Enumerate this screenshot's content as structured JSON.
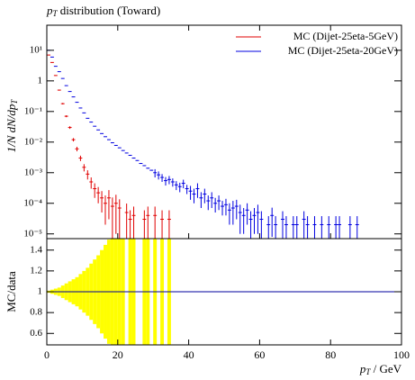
{
  "chart_data": {
    "type": "histogram",
    "title": {
      "symbol": "p",
      "subscript": "T",
      "text": " distribution (Toward)"
    },
    "ylabel": {
      "text": "1/N dN/dp",
      "subscript": "T"
    },
    "xlabel": {
      "symbol": "p",
      "subscript": "T",
      "text": " / GeV"
    },
    "log_y": true,
    "xlim": [
      0,
      100
    ],
    "xticks": [
      0,
      20,
      40,
      60,
      80,
      100
    ],
    "ylim": [
      7e-06,
      66
    ],
    "yticks": [
      {
        "value": 10,
        "label": "10¹"
      },
      1,
      {
        "value": 0.1,
        "label": "10⁻¹"
      },
      {
        "value": 0.01,
        "label": "10⁻²"
      },
      {
        "value": 0.001,
        "label": "10⁻³"
      },
      {
        "value": 0.0001,
        "label": "10⁻⁴"
      },
      {
        "value": 1e-05,
        "label": "10⁻⁵"
      }
    ],
    "legend": "top-right",
    "series": [
      {
        "name": "MC (Dijet-25eta-5GeV)",
        "color": "#e00000",
        "bins": [
          0,
          1,
          2,
          3,
          4,
          5,
          6,
          7,
          8,
          9,
          10,
          11,
          12,
          13,
          14,
          15,
          16,
          17,
          18,
          19,
          20,
          21,
          22,
          23,
          24,
          25,
          26,
          27,
          28,
          29,
          30,
          31,
          32,
          33,
          34,
          35,
          36
        ],
        "values": [
          7,
          4,
          1.5,
          0.5,
          0.18,
          0.07,
          0.03,
          0.012,
          0.006,
          0.003,
          0.0015,
          0.0009,
          0.0005,
          0.0003,
          0.00022,
          0.00015,
          0.0001,
          0.00015,
          8e-05,
          0.0001,
          7e-05,
          null,
          5e-05,
          3e-05,
          4e-05,
          null,
          null,
          3e-05,
          4e-05,
          null,
          4e-05,
          null,
          3e-05,
          null,
          3e-05,
          null
        ],
        "errors": [
          0.1,
          0.08,
          0.04,
          0.02,
          0.01,
          0.005,
          0.003,
          0.0015,
          0.001,
          0.0006,
          0.0004,
          0.0003,
          0.0002,
          0.00015,
          0.00012,
          0.0001,
          8e-05,
          0.00012,
          7.5e-05,
          9e-05,
          6.5e-05,
          null,
          4.8e-05,
          2.9e-05,
          3.8e-05,
          null,
          null,
          2.9e-05,
          3.8e-05,
          null,
          3.8e-05,
          null,
          2.9e-05,
          null,
          2.9e-05,
          null
        ]
      },
      {
        "name": "MC (Dijet-25eta-20GeV)",
        "color": "#0000e0",
        "bins": [
          0,
          1,
          2,
          3,
          4,
          5,
          6,
          7,
          8,
          9,
          10,
          11,
          12,
          13,
          14,
          15,
          16,
          17,
          18,
          19,
          20,
          21,
          22,
          23,
          24,
          25,
          26,
          27,
          28,
          29,
          30,
          31,
          32,
          33,
          34,
          35,
          36,
          37,
          38,
          39,
          40,
          41,
          42,
          43,
          44,
          45,
          46,
          47,
          48,
          49,
          50,
          51,
          52,
          53,
          54,
          55,
          56,
          57,
          58,
          59,
          60,
          61,
          62,
          63,
          64,
          65,
          66,
          67,
          68,
          69,
          70,
          71,
          72,
          73,
          74,
          75,
          76,
          77,
          78,
          79,
          80,
          81,
          82,
          83,
          84,
          85,
          86,
          87,
          88,
          89,
          90
        ],
        "values": [
          10,
          6,
          3,
          2,
          1.2,
          0.7,
          0.45,
          0.3,
          0.2,
          0.13,
          0.09,
          0.06,
          0.045,
          0.033,
          0.025,
          0.019,
          0.015,
          0.012,
          0.0095,
          0.0078,
          0.0065,
          0.0053,
          0.0044,
          0.0037,
          0.003,
          0.0025,
          0.002,
          0.0017,
          0.0014,
          0.0012,
          0.001,
          0.00085,
          0.0007,
          0.00055,
          0.0006,
          0.0005,
          0.0004,
          0.00035,
          0.00045,
          0.0003,
          0.00025,
          0.0002,
          0.0003,
          0.00015,
          0.0002,
          0.00012,
          0.00015,
          0.0001,
          0.00012,
          8e-05,
          9e-05,
          6e-05,
          7e-05,
          8e-05,
          5e-05,
          4e-05,
          6e-05,
          3e-05,
          4e-05,
          5e-05,
          3e-05,
          null,
          2e-05,
          4e-05,
          2e-05,
          null,
          3e-05,
          2e-05,
          null,
          2e-05,
          2e-05,
          null,
          3e-05,
          2e-05,
          null,
          2e-05,
          null,
          2e-05,
          null,
          2e-05,
          null,
          2e-05,
          2e-05,
          null,
          null,
          2e-05,
          null,
          2e-05,
          null,
          null
        ],
        "errors": [
          0.05,
          0.03,
          0.015,
          0.01,
          0.006,
          0.004,
          0.003,
          0.002,
          0.0015,
          0.001,
          0.0008,
          0.0006,
          0.0005,
          0.0004,
          0.0003,
          0.00025,
          0.0002,
          0.00018,
          0.00015,
          0.00013,
          0.00012,
          0.0001,
          9e-05,
          8e-05,
          7e-05,
          6e-05,
          5e-05,
          5e-05,
          4e-05,
          4e-05,
          0.0003,
          0.00025,
          0.0002,
          0.00017,
          0.00018,
          0.00015,
          0.00013,
          0.00012,
          0.00014,
          0.0001,
          0.00012,
          0.0001,
          0.00015,
          8e-05,
          0.0001,
          6e-05,
          8e-05,
          5e-05,
          6e-05,
          4e-05,
          5e-05,
          4e-05,
          5e-05,
          5e-05,
          4e-05,
          3e-05,
          4e-05,
          2.5e-05,
          3e-05,
          4e-05,
          2.5e-05,
          null,
          1.8e-05,
          3.2e-05,
          1.8e-05,
          null,
          2.5e-05,
          1.8e-05,
          null,
          1.8e-05,
          1.8e-05,
          null,
          2.5e-05,
          1.8e-05,
          null,
          1.8e-05,
          null,
          1.8e-05,
          null,
          1.8e-05,
          null,
          1.8e-05,
          1.8e-05,
          null,
          null,
          1.8e-05,
          null,
          1.8e-05,
          null,
          null
        ]
      }
    ],
    "ratio": {
      "ylabel": "MC/data",
      "ylim": [
        0.49,
        1.51
      ],
      "yticks": [
        1.4,
        1.2,
        1,
        0.8,
        0.6
      ],
      "reference": 1,
      "band_color": "#ffff00",
      "band_bins": [
        0,
        1,
        2,
        3,
        4,
        5,
        6,
        7,
        8,
        9,
        10,
        11,
        12,
        13,
        14,
        15,
        16,
        17,
        18,
        19,
        20,
        21,
        22,
        23,
        24,
        25,
        26,
        27,
        28,
        29,
        30,
        31,
        32,
        33,
        34,
        35
      ],
      "band": [
        0.01,
        0.02,
        0.03,
        0.04,
        0.06,
        0.08,
        0.1,
        0.12,
        0.14,
        0.17,
        0.2,
        0.23,
        0.27,
        0.31,
        0.35,
        0.4,
        0.45,
        0.5,
        0.7,
        0.9,
        1,
        1,
        null,
        1,
        1,
        null,
        null,
        1,
        1,
        null,
        1,
        null,
        1,
        null,
        1
      ]
    }
  }
}
